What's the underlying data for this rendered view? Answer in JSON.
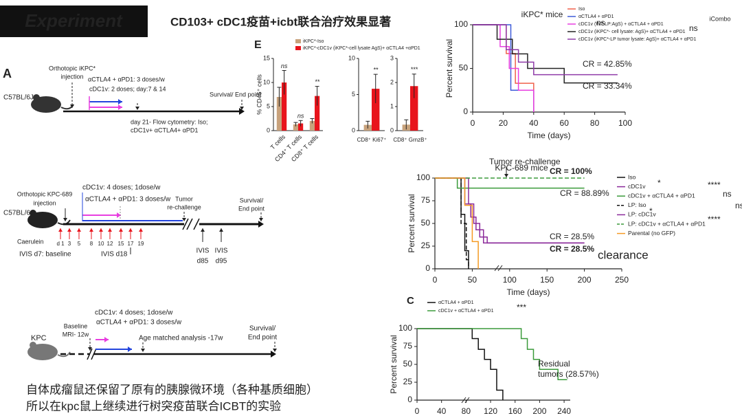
{
  "header": {
    "badge": "Experiment",
    "title": "CD103+ cDC1疫苗+icbt联合治疗效果显著",
    "logo": "iCombo"
  },
  "panel_labels": {
    "a": "A",
    "e": "E",
    "c": "C"
  },
  "timelines": [
    {
      "mouse": "C57BL/6J",
      "injection": [
        "Orthotopic iKPC*",
        "injection"
      ],
      "icb": "αCTLA4 + αPD1: 3 doses/w",
      "vaccine": "cDC1v: 2 doses; day:7 & 14",
      "end": [
        "Survival/ End point"
      ],
      "analysis": [
        "day 21- Flow cytometry: Iso;",
        "cDC1v+ αCTLA4+ αPD1"
      ]
    },
    {
      "mouse": "C57BL/6J",
      "injection": [
        "Orthotopic KPC-689",
        "injection"
      ],
      "vaccine": "cDC1v: 4 doses; 1dose/w",
      "icb": "αCTLA4 + αPD1: 3 doses/w",
      "rechallenge": [
        "Tumor",
        "re-challenge"
      ],
      "end": [
        "Survival/",
        "End point"
      ],
      "caerulein": "Caerulein",
      "caerulein_days": [
        "d 1",
        "3",
        "5"
      ],
      "treatment_days": [
        "8",
        "10",
        "12",
        "15",
        "17",
        "19"
      ],
      "ivis": [
        "IVIS d7: baseline",
        "IVIS d18"
      ],
      "ivis_late": [
        [
          "IVIS",
          "d85"
        ],
        [
          "IVIS",
          "d95"
        ]
      ]
    },
    {
      "mouse": "KPC",
      "baseline": [
        "Baseline",
        "MRI- 12w"
      ],
      "vaccine": "cDC1v: 4 doses; 1dose/w",
      "icb": "αCTLA4 + αPD1: 3 doses/w",
      "analysis": [
        "Age matched analysis -17w"
      ],
      "end": [
        "Survival/",
        "End point"
      ]
    }
  ],
  "notes": [
    "自体成瘤鼠还保留了原有的胰腺微环境（各种基质细胞）",
    "所以在kpc鼠上继续进行树突疫苗联合ICBT的实验"
  ],
  "overlay_text": "clearance",
  "chart_data": [
    {
      "type": "bar",
      "ylabel": "% CD45⁺ cells",
      "categories": [
        "T cells",
        "CD4⁺ T cells",
        "CD8⁺ T cells"
      ],
      "series": [
        {
          "name": "iKPC*-Iso",
          "color": "#c8a27c",
          "values": [
            7,
            1.3,
            2
          ],
          "errors": [
            2,
            0.4,
            0.5
          ]
        },
        {
          "name": "iKPC*-cDC1v (iKPC*-cell lysate AgS)+ αCTLA4 +αPD1",
          "color": "#e8141c",
          "values": [
            10,
            1.5,
            7.2
          ],
          "errors": [
            2.5,
            0.6,
            2
          ]
        }
      ],
      "significance": [
        "ns",
        "ns",
        "**"
      ],
      "ylim": [
        0,
        15
      ],
      "yticks": [
        0,
        5,
        10,
        15
      ]
    },
    {
      "type": "bar",
      "categories": [
        "CD8⁺ Ki67⁺"
      ],
      "series": [
        {
          "color": "#c8a27c",
          "values": [
            0.8
          ],
          "errors": [
            0.5
          ]
        },
        {
          "color": "#e8141c",
          "values": [
            5.8
          ],
          "errors": [
            2
          ]
        }
      ],
      "significance": [
        "**"
      ],
      "ylim": [
        0,
        10
      ],
      "yticks": [
        0,
        5,
        10
      ]
    },
    {
      "type": "bar",
      "categories": [
        "CD8⁺ GrnzB⁺"
      ],
      "series": [
        {
          "color": "#c8a27c",
          "values": [
            0.25
          ],
          "errors": [
            0.2
          ]
        },
        {
          "color": "#e8141c",
          "values": [
            1.85
          ],
          "errors": [
            0.5
          ]
        }
      ],
      "significance": [
        "***"
      ],
      "ylim": [
        0,
        3
      ],
      "yticks": [
        0,
        1,
        2,
        3
      ]
    },
    {
      "type": "survival",
      "title": "iKPC* mice",
      "xlabel": "Time (days)",
      "ylabel": "Percent survival",
      "series": [
        {
          "name": "Iso",
          "color": "#f0604a",
          "x": [
            0,
            22,
            28,
            40
          ],
          "values": [
            100,
            67,
            33,
            0
          ]
        },
        {
          "name": "αCTLA4 + αPD1",
          "color": "#3d5bd9",
          "x": [
            0,
            25,
            40
          ],
          "values": [
            100,
            25,
            0
          ]
        },
        {
          "name": "cDC1v (WT-LP:AgS) + αCTLA4 + αPD1",
          "color": "#e83ee0",
          "x": [
            0,
            18,
            24,
            30,
            40
          ],
          "values": [
            100,
            75,
            50,
            25,
            0
          ]
        },
        {
          "name": "cDC1v (iKPC*- cell lysate: AgS)+ αCTLA4 + αPD1",
          "color": "#222222",
          "x": [
            0,
            16,
            26,
            36,
            60,
            95
          ],
          "values": [
            100,
            83.33,
            66.67,
            50,
            33.34,
            33.34
          ]
        },
        {
          "name": "cDC1v (iKPC*-LP tumor lysate: AgS)+ αCTLA4 + αPD1",
          "color": "#8e3aa8",
          "x": [
            0,
            22,
            30,
            40,
            95
          ],
          "values": [
            100,
            71.43,
            57.14,
            42.85,
            42.85
          ]
        }
      ],
      "annotations": [
        "CR = 42.85%",
        "CR = 33.34%",
        "ns",
        "ns"
      ],
      "xlim": [
        0,
        100
      ],
      "xticks": [
        0,
        20,
        40,
        60,
        80,
        100
      ],
      "ylim": [
        0,
        100
      ],
      "yticks": [
        0,
        50,
        100
      ]
    },
    {
      "type": "survival",
      "title": "KPC-689 mice",
      "xlabel": "Time (days)",
      "ylabel": "Percent survival",
      "series": [
        {
          "name": "Iso",
          "color": "#111111",
          "x": [
            0,
            35,
            40,
            45
          ],
          "values": [
            100,
            60,
            20,
            0
          ]
        },
        {
          "name": "cDC1v",
          "color": "#8b2a9a",
          "x": [
            0,
            40,
            48,
            55,
            65,
            200
          ],
          "values": [
            100,
            71.5,
            57,
            43,
            28.5,
            28.5
          ]
        },
        {
          "name": "cDC1v + αCTLA4 + αPD1",
          "color": "#3a9a3a",
          "x": [
            0,
            30,
            200
          ],
          "values": [
            100,
            88.89,
            88.89
          ]
        },
        {
          "name": "LP: Iso",
          "color": "#111111",
          "dashed": true,
          "x": [
            0,
            35,
            42,
            45
          ],
          "values": [
            100,
            50,
            10,
            0
          ]
        },
        {
          "name": "LP: cDC1v",
          "color": "#8b2a9a",
          "x": [
            0,
            45,
            52,
            60,
            70,
            200
          ],
          "values": [
            100,
            71.5,
            50,
            35,
            28.5,
            28.5
          ]
        },
        {
          "name": "LP: cDC1v + αCTLA4 + αPD1",
          "color": "#3a9a3a",
          "dashed": true,
          "x": [
            0,
            200
          ],
          "values": [
            100,
            100
          ]
        },
        {
          "name": "Parental (no GFP)",
          "color": "#f59a23",
          "x": [
            0,
            40,
            50,
            58
          ],
          "values": [
            100,
            70,
            30,
            0
          ]
        }
      ],
      "annotations": [
        "Tumor re-challenge",
        "CR = 100%",
        "CR = 88.89%",
        "CR = 28.5%",
        "CR = 28.5%",
        "*",
        "****",
        "ns",
        "*",
        "****",
        "ns"
      ],
      "xlim": [
        0,
        250
      ],
      "xticks": [
        0,
        50,
        100,
        150,
        200,
        250
      ],
      "ylim": [
        0,
        100
      ],
      "yticks": [
        0,
        25,
        50,
        75,
        100
      ]
    },
    {
      "type": "survival",
      "ylabel": "Percent survival",
      "series": [
        {
          "name": "αCTLA4 + αPD1",
          "color": "#111111",
          "x": [
            0,
            90,
            100,
            110,
            120,
            130,
            140
          ],
          "values": [
            100,
            86,
            71,
            57,
            43,
            14,
            0
          ]
        },
        {
          "name": "cDC1v + αCTLA4 + αPD1",
          "color": "#3a9a3a",
          "x": [
            0,
            170,
            180,
            190,
            200,
            230,
            245
          ],
          "values": [
            100,
            86,
            71,
            57,
            43,
            28.57,
            28.57
          ]
        }
      ],
      "annotations": [
        "***",
        "Residual",
        "tumors (28.57%)"
      ],
      "xlim": [
        0,
        250
      ],
      "xticks": [
        0,
        40,
        80,
        120,
        160,
        200,
        240
      ],
      "ylim": [
        0,
        100
      ],
      "yticks": [
        0,
        25,
        50,
        75,
        100
      ]
    }
  ]
}
